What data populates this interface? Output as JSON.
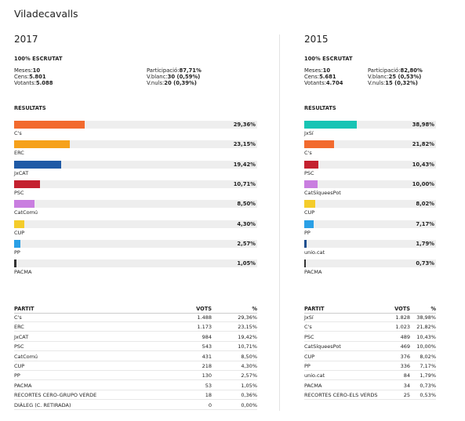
{
  "town": "Viladecavalls",
  "elections": [
    {
      "year": "2017",
      "scrutat": "100% ESCRUTAT",
      "meses_label": "Meses:",
      "meses": "10",
      "cens_label": "Cens:",
      "cens": "5.801",
      "votants_label": "Votants:",
      "votants": "5.088",
      "participacio_label": "Participació:",
      "participacio": "87,71%",
      "vblanc_label": "V.blanc:",
      "vblanc": "30 (0,59%)",
      "vnuls_label": "V.nuls:",
      "vnuls": "20 (0,39%)",
      "resultats_title": "RESULTATS",
      "parties": [
        {
          "name": "C's",
          "pct": "29,36%",
          "value": 29.36,
          "color": "#f26a2e"
        },
        {
          "name": "ERC",
          "pct": "23,15%",
          "value": 23.15,
          "color": "#f6a11b"
        },
        {
          "name": "JxCAT",
          "pct": "19,42%",
          "value": 19.42,
          "color": "#1f5aa6"
        },
        {
          "name": "PSC",
          "pct": "10,71%",
          "value": 10.71,
          "color": "#c4212f"
        },
        {
          "name": "CatComú",
          "pct": "8,50%",
          "value": 8.5,
          "color": "#c97ee0"
        },
        {
          "name": "CUP",
          "pct": "4,30%",
          "value": 4.3,
          "color": "#f4cc2b"
        },
        {
          "name": "PP",
          "pct": "2,57%",
          "value": 2.57,
          "color": "#2aa0e6"
        },
        {
          "name": "PACMA",
          "pct": "1,05%",
          "value": 1.05,
          "color": "#333333"
        }
      ],
      "table": {
        "h_partit": "PARTIT",
        "h_vots": "VOTS",
        "h_pct": "%",
        "rows": [
          {
            "partit": "C's",
            "vots": "1.488",
            "pct": "29,36%"
          },
          {
            "partit": "ERC",
            "vots": "1.173",
            "pct": "23,15%"
          },
          {
            "partit": "JxCAT",
            "vots": "984",
            "pct": "19,42%"
          },
          {
            "partit": "PSC",
            "vots": "543",
            "pct": "10,71%"
          },
          {
            "partit": "CatComú",
            "vots": "431",
            "pct": "8,50%"
          },
          {
            "partit": "CUP",
            "vots": "218",
            "pct": "4,30%"
          },
          {
            "partit": "PP",
            "vots": "130",
            "pct": "2,57%"
          },
          {
            "partit": "PACMA",
            "vots": "53",
            "pct": "1,05%"
          },
          {
            "partit": "RECORTES CERO-GRUPO VERDE",
            "vots": "18",
            "pct": "0,36%"
          },
          {
            "partit": "DIÀLEG (C. RETIRADA)",
            "vots": "0",
            "pct": "0,00%"
          }
        ]
      }
    },
    {
      "year": "2015",
      "scrutat": "100% ESCRUTAT",
      "meses_label": "Meses:",
      "meses": "10",
      "cens_label": "Cens:",
      "cens": "5.681",
      "votants_label": "Votants:",
      "votants": "4.704",
      "participacio_label": "Participació:",
      "participacio": "82,80%",
      "vblanc_label": "V.blanc:",
      "vblanc": "25 (0,53%)",
      "vnuls_label": "V.nuls:",
      "vnuls": "15 (0,32%)",
      "resultats_title": "RESULTATS",
      "parties": [
        {
          "name": "JxSí",
          "pct": "38,98%",
          "value": 38.98,
          "color": "#17c4b4"
        },
        {
          "name": "C's",
          "pct": "21,82%",
          "value": 21.82,
          "color": "#f26a2e"
        },
        {
          "name": "PSC",
          "pct": "10,43%",
          "value": 10.43,
          "color": "#c4212f"
        },
        {
          "name": "CatSíqueesPot",
          "pct": "10,00%",
          "value": 10.0,
          "color": "#c97ee0"
        },
        {
          "name": "CUP",
          "pct": "8,02%",
          "value": 8.02,
          "color": "#f4cc2b"
        },
        {
          "name": "PP",
          "pct": "7,17%",
          "value": 7.17,
          "color": "#2aa0e6"
        },
        {
          "name": "unio.cat",
          "pct": "1,79%",
          "value": 1.79,
          "color": "#1f4f8f"
        },
        {
          "name": "PACMA",
          "pct": "0,73%",
          "value": 0.73,
          "color": "#333333"
        }
      ],
      "table": {
        "h_partit": "PARTIT",
        "h_vots": "VOTS",
        "h_pct": "%",
        "rows": [
          {
            "partit": "JxSí",
            "vots": "1.828",
            "pct": "38,98%"
          },
          {
            "partit": "C's",
            "vots": "1.023",
            "pct": "21,82%"
          },
          {
            "partit": "PSC",
            "vots": "489",
            "pct": "10,43%"
          },
          {
            "partit": "CatSíqueesPot",
            "vots": "469",
            "pct": "10,00%"
          },
          {
            "partit": "CUP",
            "vots": "376",
            "pct": "8,02%"
          },
          {
            "partit": "PP",
            "vots": "336",
            "pct": "7,17%"
          },
          {
            "partit": "unio.cat",
            "vots": "84",
            "pct": "1,79%"
          },
          {
            "partit": "PACMA",
            "vots": "34",
            "pct": "0,73%"
          },
          {
            "partit": "RECORTES CERO-ELS VERDS",
            "vots": "25",
            "pct": "0,53%"
          }
        ]
      }
    }
  ]
}
